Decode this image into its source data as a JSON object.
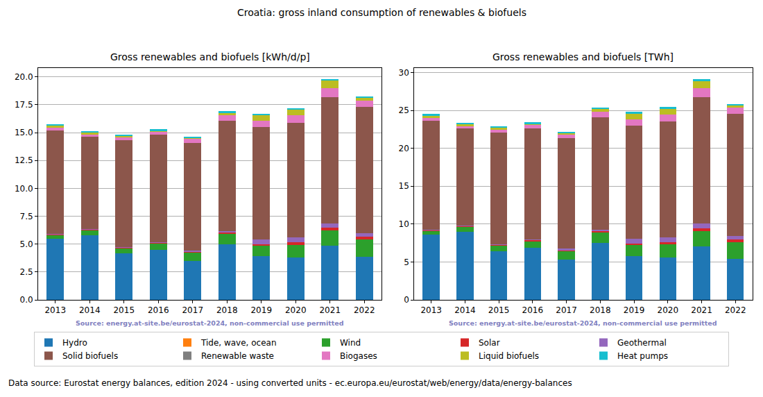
{
  "title": "Croatia: gross inland consumption of renewables & biofuels",
  "footer": "Data source: Eurostat energy balances, edition 2024 - using converted units - ec.europa.eu/eurostat/web/energy/data/energy-balances",
  "chart_data": [
    {
      "type": "bar",
      "stacked": true,
      "grid": true,
      "legend": "bottom",
      "title": "Gross renewables and biofuels [kWh/d/p]",
      "annotation": "Source: energy.at-site.be/eurostat-2024, non-commercial use permitted",
      "categories": [
        "2013",
        "2014",
        "2015",
        "2016",
        "2017",
        "2018",
        "2019",
        "2020",
        "2021",
        "2022"
      ],
      "ylim": [
        0,
        20.8
      ],
      "yticks": [
        {
          "value": 0,
          "label": "0.0"
        },
        2.5,
        {
          "value": 5,
          "label": "5.0"
        },
        7.5,
        {
          "value": 10,
          "label": "10.0"
        },
        12.5,
        {
          "value": 15,
          "label": "15.0"
        },
        17.5,
        {
          "value": 20,
          "label": "20.0"
        }
      ],
      "series": [
        {
          "name": "Hydro",
          "color": "#1f77b4",
          "values": [
            5.5,
            5.8,
            4.15,
            4.5,
            3.5,
            5.0,
            3.9,
            3.8,
            4.85,
            3.85
          ]
        },
        {
          "name": "Tide, wave, ocean",
          "color": "#ff7f0e",
          "values": [
            0,
            0,
            0,
            0,
            0,
            0,
            0,
            0,
            0,
            0
          ]
        },
        {
          "name": "Wind",
          "color": "#2ca02c",
          "values": [
            0.35,
            0.45,
            0.5,
            0.55,
            0.75,
            0.95,
            0.95,
            1.15,
            1.35,
            1.55
          ]
        },
        {
          "name": "Solar",
          "color": "#d62728",
          "values": [
            0.05,
            0.07,
            0.08,
            0.1,
            0.1,
            0.12,
            0.15,
            0.2,
            0.25,
            0.25
          ]
        },
        {
          "name": "Geothermal",
          "color": "#9467bd",
          "values": [
            0.02,
            0.02,
            0.02,
            0.05,
            0.1,
            0.1,
            0.4,
            0.45,
            0.4,
            0.3
          ]
        },
        {
          "name": "Solid biofuels",
          "color": "#8c564b",
          "values": [
            9.3,
            8.3,
            9.55,
            9.6,
            9.65,
            9.9,
            10.1,
            10.3,
            11.35,
            11.35
          ]
        },
        {
          "name": "Renewable waste",
          "color": "#7f7f7f",
          "values": [
            0,
            0,
            0,
            0,
            0,
            0,
            0,
            0,
            0,
            0
          ]
        },
        {
          "name": "Biogases",
          "color": "#e377c2",
          "values": [
            0.2,
            0.2,
            0.25,
            0.3,
            0.35,
            0.5,
            0.55,
            0.65,
            0.8,
            0.6
          ]
        },
        {
          "name": "Liquid biofuels",
          "color": "#bcbd22",
          "values": [
            0.25,
            0.2,
            0.2,
            0.05,
            0.05,
            0.2,
            0.5,
            0.5,
            0.65,
            0.2
          ]
        },
        {
          "name": "Heat pumps",
          "color": "#17becf",
          "values": [
            0.1,
            0.1,
            0.1,
            0.15,
            0.15,
            0.15,
            0.15,
            0.15,
            0.15,
            0.15
          ]
        }
      ]
    },
    {
      "type": "bar",
      "stacked": true,
      "grid": true,
      "legend": "bottom",
      "title": "Gross renewables and biofuels [TWh]",
      "annotation": "Source: energy.at-site.be/eurostat-2024, non-commercial use permitted",
      "categories": [
        "2013",
        "2014",
        "2015",
        "2016",
        "2017",
        "2018",
        "2019",
        "2020",
        "2021",
        "2022"
      ],
      "ylim": [
        0,
        30.6
      ],
      "yticks": [
        0,
        5,
        10,
        15,
        20,
        25,
        30
      ],
      "series": [
        {
          "name": "Hydro",
          "color": "#1f77b4",
          "values": [
            8.6,
            9.0,
            6.4,
            6.9,
            5.3,
            7.5,
            5.8,
            5.6,
            7.1,
            5.45
          ]
        },
        {
          "name": "Tide, wave, ocean",
          "color": "#ff7f0e",
          "values": [
            0,
            0,
            0,
            0,
            0,
            0,
            0,
            0,
            0,
            0
          ]
        },
        {
          "name": "Wind",
          "color": "#2ca02c",
          "values": [
            0.55,
            0.7,
            0.77,
            0.84,
            1.14,
            1.43,
            1.41,
            1.7,
            1.98,
            2.2
          ]
        },
        {
          "name": "Solar",
          "color": "#d62728",
          "values": [
            0.08,
            0.1,
            0.12,
            0.15,
            0.15,
            0.18,
            0.22,
            0.3,
            0.37,
            0.36
          ]
        },
        {
          "name": "Geothermal",
          "color": "#9467bd",
          "values": [
            0.03,
            0.03,
            0.03,
            0.08,
            0.15,
            0.15,
            0.59,
            0.67,
            0.59,
            0.43
          ]
        },
        {
          "name": "Solid biofuels",
          "color": "#8c564b",
          "values": [
            14.4,
            12.8,
            14.75,
            14.7,
            14.6,
            14.85,
            15.0,
            15.25,
            16.7,
            16.1
          ]
        },
        {
          "name": "Renewable waste",
          "color": "#7f7f7f",
          "values": [
            0,
            0,
            0,
            0,
            0,
            0,
            0,
            0,
            0,
            0
          ]
        },
        {
          "name": "Biogases",
          "color": "#e377c2",
          "values": [
            0.3,
            0.3,
            0.39,
            0.46,
            0.53,
            0.75,
            0.82,
            0.96,
            1.18,
            0.85
          ]
        },
        {
          "name": "Liquid biofuels",
          "color": "#bcbd22",
          "values": [
            0.4,
            0.3,
            0.3,
            0.08,
            0.08,
            0.3,
            0.74,
            0.74,
            0.96,
            0.28
          ]
        },
        {
          "name": "Heat pumps",
          "color": "#17becf",
          "values": [
            0.15,
            0.15,
            0.15,
            0.23,
            0.23,
            0.23,
            0.22,
            0.22,
            0.22,
            0.21
          ]
        }
      ]
    }
  ]
}
